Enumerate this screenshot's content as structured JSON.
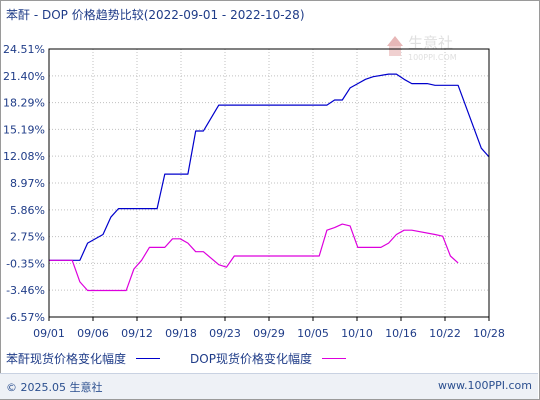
{
  "header": {
    "title": "苯酐 - DOP 价格趋势比较(2022-09-01 - 2022-10-28)"
  },
  "watermark": {
    "name": "生意社",
    "url": "100PPI.COM"
  },
  "footer": {
    "copyright": "© 2025.05 生意社",
    "site": "www.100PPI.com"
  },
  "colors": {
    "series1": "#0000cc",
    "series2": "#dd00dd",
    "axis": "#000000",
    "grid": "#c0c0c0",
    "text": "#1f3c88"
  },
  "chart_data": {
    "type": "line",
    "title": "苯酐 - DOP 价格趋势比较(2022-09-01 - 2022-10-28)",
    "xlabel": "",
    "ylabel": "",
    "x_ticks": [
      "09/01",
      "09/06",
      "09/12",
      "09/18",
      "09/23",
      "09/29",
      "10/05",
      "10/10",
      "10/16",
      "10/22",
      "10/28"
    ],
    "y_ticks": [
      "24.51%",
      "21.40%",
      "18.29%",
      "15.19%",
      "12.08%",
      "8.97%",
      "5.86%",
      "2.75%",
      "-0.35%",
      "-3.46%",
      "-6.57%"
    ],
    "y_tick_values": [
      24.51,
      21.4,
      18.29,
      15.19,
      12.08,
      8.97,
      5.86,
      2.75,
      -0.35,
      -3.46,
      -6.57
    ],
    "ylim": [
      -6.57,
      24.51
    ],
    "xlim": [
      1,
      58
    ],
    "x_unit": "day (Sep 1 = 1)",
    "grid": true,
    "legend_position": "bottom-left",
    "series": [
      {
        "name": "苯酐现货价格变化幅度",
        "x": [
          1,
          5,
          6,
          8,
          9,
          10,
          11,
          12,
          15,
          16,
          19,
          20,
          21,
          23,
          24,
          25,
          37,
          38,
          39,
          40,
          41,
          42,
          43,
          45,
          46,
          47,
          48,
          49,
          50,
          51,
          54,
          57,
          58
        ],
        "values": [
          0,
          0,
          2,
          3,
          5,
          6,
          6,
          6,
          6,
          10,
          10,
          15,
          15,
          18,
          18,
          18,
          18,
          18.6,
          18.6,
          20,
          20.5,
          21,
          21.3,
          21.6,
          21.6,
          21.0,
          20.5,
          20.5,
          20.5,
          20.3,
          20.3,
          13,
          12
        ]
      },
      {
        "name": "DOP现货价格变化幅度",
        "x": [
          1,
          4,
          5,
          6,
          7,
          11,
          12,
          13,
          14,
          15,
          16,
          17,
          18,
          19,
          20,
          21,
          23,
          24,
          25,
          26,
          36,
          37,
          38,
          39,
          40,
          41,
          42,
          43,
          44,
          45,
          46,
          47,
          48,
          51,
          52,
          53,
          54
        ],
        "values": [
          0,
          0,
          -2.5,
          -3.5,
          -3.5,
          -3.5,
          -1,
          0,
          1.5,
          1.5,
          1.5,
          2.5,
          2.5,
          2.0,
          1.0,
          1.0,
          -0.5,
          -0.8,
          0.5,
          0.5,
          0.5,
          3.5,
          3.8,
          4.2,
          4.0,
          1.5,
          1.5,
          1.5,
          1.5,
          2.0,
          3.0,
          3.5,
          3.5,
          3.0,
          2.8,
          0.5,
          -0.3
        ]
      }
    ]
  }
}
